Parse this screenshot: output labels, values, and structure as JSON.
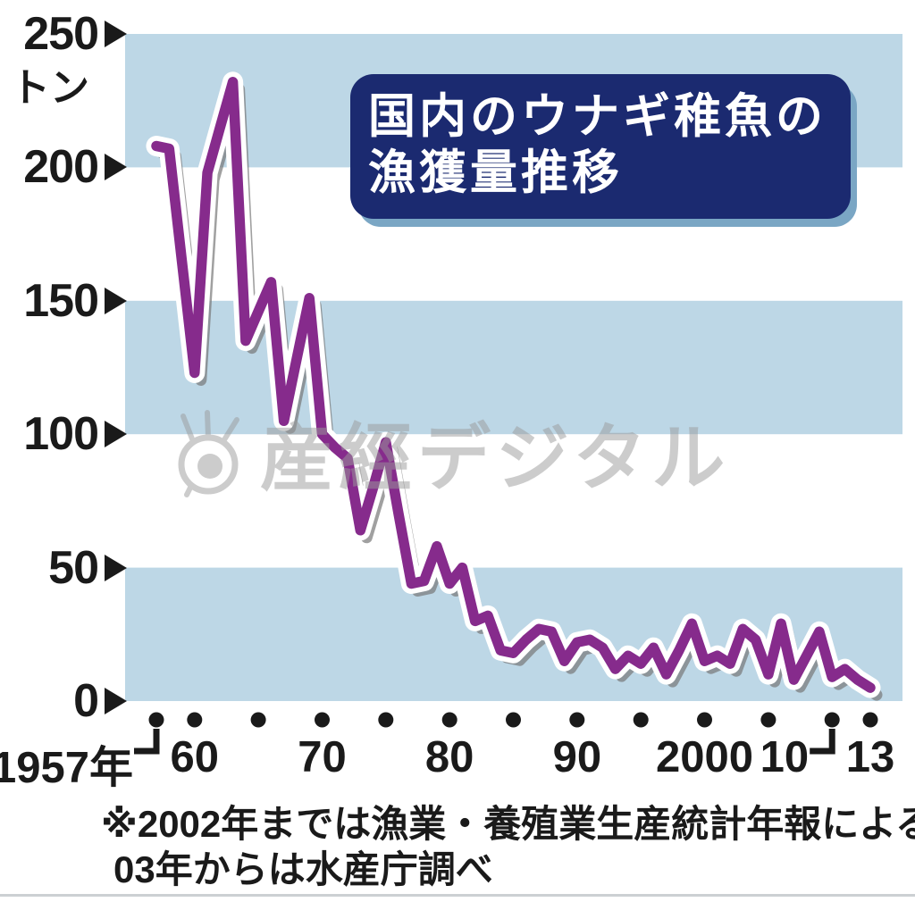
{
  "title": {
    "line1": "国内のウナギ稚魚の",
    "line2": "漁獲量推移"
  },
  "watermark": {
    "text": "産經デジタル",
    "icon": "eye-logo",
    "color": "#9b9b9b"
  },
  "footnote": {
    "line1": "※2002年までは漁業・養殖業生産統計年報による。",
    "line2": "03年からは水産庁調べ"
  },
  "colors": {
    "band_blue": "#bdd7e6",
    "line_purple": "#862b8c",
    "title_bg": "#1b2a70",
    "title_text": "#ffffff",
    "title_shadow": "#7aa6c4",
    "axis_black": "#1a1a1a"
  },
  "chart_data": {
    "type": "line",
    "title": "国内のウナギ稚魚の漁獲量推移",
    "ylabel": "トン",
    "y_unit": "トン",
    "ylim": [
      0,
      250
    ],
    "xlim": [
      1957,
      2013
    ],
    "x_from": 1957,
    "x_to": 2013,
    "x_step": 1,
    "grid": "alternating horizontal 50-ton bands",
    "legend": "none",
    "band_color": "#bdd7e6",
    "line_color": "#862b8c",
    "bands": [
      [
        0,
        50
      ],
      [
        100,
        150
      ],
      [
        200,
        250
      ]
    ],
    "y_ticks": [
      {
        "value": 250,
        "label": "250"
      },
      {
        "value": 200,
        "label": "200"
      },
      {
        "value": 150,
        "label": "150"
      },
      {
        "value": 100,
        "label": "100"
      },
      {
        "value": 50,
        "label": "50"
      },
      {
        "value": 0,
        "label": "0"
      }
    ],
    "x_ticks": [
      {
        "year": 1957,
        "label": "1957年",
        "hook": true
      },
      {
        "year": 1960,
        "label": "60"
      },
      {
        "year": 1965,
        "label": ""
      },
      {
        "year": 1970,
        "label": "70"
      },
      {
        "year": 1975,
        "label": ""
      },
      {
        "year": 1980,
        "label": "80"
      },
      {
        "year": 1985,
        "label": ""
      },
      {
        "year": 1990,
        "label": "90"
      },
      {
        "year": 1995,
        "label": ""
      },
      {
        "year": 2000,
        "label": "2000"
      },
      {
        "year": 2005,
        "label": ""
      },
      {
        "year": 2010,
        "label": "10",
        "hook": true
      },
      {
        "year": 2013,
        "label": "13"
      }
    ],
    "values": [
      208,
      207,
      165,
      123,
      198,
      215,
      232,
      135,
      146,
      157,
      105,
      128,
      151,
      100,
      95,
      91,
      64,
      80,
      97,
      70,
      44,
      45,
      58,
      44,
      50,
      30,
      32,
      19,
      18,
      23,
      27,
      26,
      15,
      22,
      23,
      20,
      12,
      17,
      14,
      20,
      10,
      19,
      29,
      15,
      17,
      14,
      27,
      23,
      10,
      29,
      8,
      17,
      26,
      9,
      12,
      8,
      5
    ]
  }
}
